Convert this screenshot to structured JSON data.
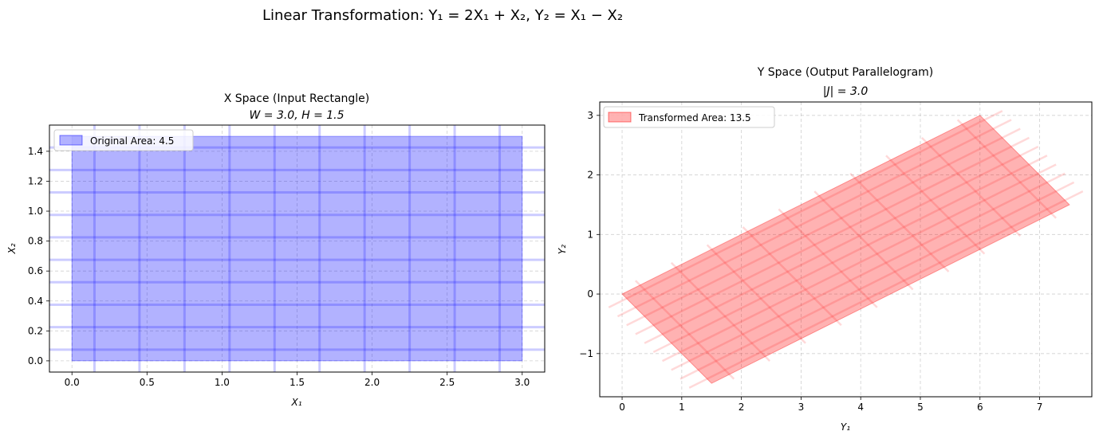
{
  "figure": {
    "suptitle": "Linear Transformation: Y₁ = 2X₁ + X₂, Y₂ = X₁ − X₂"
  },
  "chart_data": [
    {
      "type": "area",
      "title_line1": "X Space (Input Rectangle)",
      "title_line2": "W = 3.0, H = 1.5",
      "xlabel": "X₁",
      "ylabel": "X₂",
      "xlim": [
        -0.15,
        3.15
      ],
      "ylim": [
        -0.075,
        1.575
      ],
      "xticks": [
        0.0,
        0.5,
        1.0,
        1.5,
        2.0,
        2.5,
        3.0
      ],
      "xtick_labels": [
        "0.0",
        "0.5",
        "1.0",
        "1.5",
        "2.0",
        "2.5",
        "3.0"
      ],
      "yticks": [
        0.0,
        0.2,
        0.4,
        0.6,
        0.8,
        1.0,
        1.2,
        1.4
      ],
      "ytick_labels": [
        "0.0",
        "0.2",
        "0.4",
        "0.6",
        "0.8",
        "1.0",
        "1.2",
        "1.4"
      ],
      "grid": true,
      "legend_position": "top-left",
      "series": [
        {
          "name": "Original Area: 4.5",
          "color": "#0000ff",
          "polygon": [
            [
              0,
              0
            ],
            [
              3,
              0
            ],
            [
              3,
              1.5
            ],
            [
              0,
              1.5
            ]
          ]
        }
      ],
      "grid_overlay": {
        "vertical_x": [
          0.15,
          0.45,
          0.75,
          1.05,
          1.35,
          1.65,
          1.95,
          2.25,
          2.55,
          2.85
        ],
        "horizontal_y": [
          0.075,
          0.225,
          0.375,
          0.525,
          0.675,
          0.825,
          0.975,
          1.125,
          1.275,
          1.425
        ],
        "x_range": [
          -0.15,
          3.15
        ],
        "y_range": [
          -0.075,
          1.575
        ]
      }
    },
    {
      "type": "area",
      "title_line1": "Y Space (Output Parallelogram)",
      "title_line2": "|J| = 3.0",
      "xlabel": "Y₁",
      "ylabel": "Y₂",
      "xlim": [
        -0.375,
        7.875
      ],
      "ylim": [
        -1.725,
        3.225
      ],
      "xticks": [
        0,
        1,
        2,
        3,
        4,
        5,
        6,
        7
      ],
      "xtick_labels": [
        "0",
        "1",
        "2",
        "3",
        "4",
        "5",
        "6",
        "7"
      ],
      "yticks": [
        -1,
        0,
        1,
        2,
        3
      ],
      "ytick_labels": [
        "−1",
        "0",
        "1",
        "2",
        "3"
      ],
      "grid": true,
      "legend_position": "top-left",
      "series": [
        {
          "name": "Transformed Area: 13.5",
          "color": "#ff0000",
          "polygon": [
            [
              0,
              0
            ],
            [
              6,
              3
            ],
            [
              7.5,
              1.5
            ],
            [
              1.5,
              -1.5
            ]
          ]
        }
      ],
      "transform": {
        "a": 2,
        "b": 1,
        "c": 1,
        "d": -1
      },
      "grid_overlay": {
        "source_x_lines": [
          0.15,
          0.45,
          0.75,
          1.05,
          1.35,
          1.65,
          1.95,
          2.25,
          2.55,
          2.85
        ],
        "source_y_lines": [
          0.075,
          0.225,
          0.375,
          0.525,
          0.675,
          0.825,
          0.975,
          1.125,
          1.275,
          1.425
        ],
        "source_x_range": [
          -0.15,
          3.15
        ],
        "source_y_range": [
          -0.075,
          1.575
        ]
      }
    }
  ]
}
